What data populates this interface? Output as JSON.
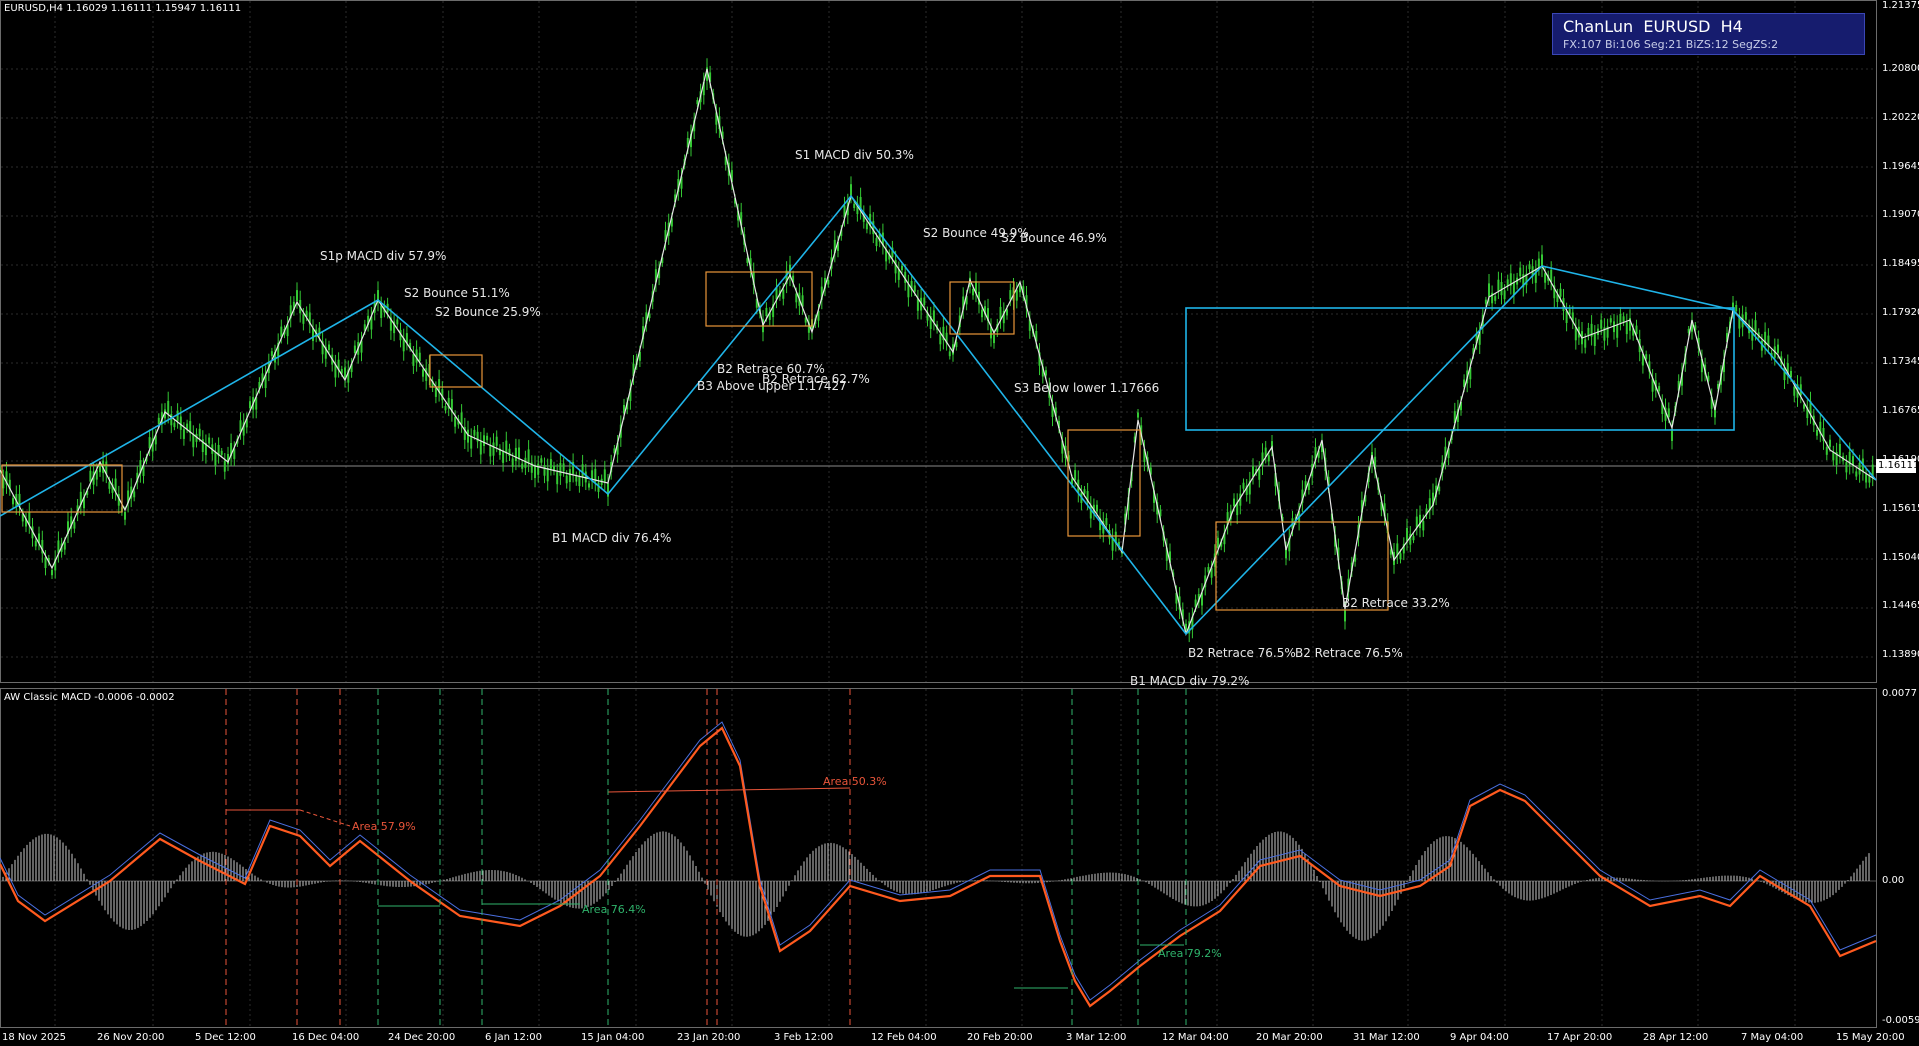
{
  "main_header": "EURUSD,H4  1.16029 1.16111 1.15947 1.16111",
  "macd_header": "AW Classic MACD -0.0006 -0.0002",
  "info_box": {
    "title": "ChanLun  EURUSD  H4",
    "stats": "FX:107  Bi:106  Seg:21  BiZS:12  SegZS:2"
  },
  "price_axis": [
    "1.21375",
    "1.20800",
    "1.20220",
    "1.19645",
    "1.19070",
    "1.18495",
    "1.17920",
    "1.17345",
    "1.16765",
    "1.16190",
    "1.15615",
    "1.15040",
    "1.14465",
    "1.13890"
  ],
  "current_price": "1.16111",
  "macd_axis": [
    "0.0077",
    "0.00",
    "-0.0059"
  ],
  "time_axis": [
    "18 Nov 2025",
    "26 Nov 20:00",
    "5 Dec 12:00",
    "16 Dec 04:00",
    "24 Dec 20:00",
    "6 Jan 12:00",
    "15 Jan 04:00",
    "23 Jan 20:00",
    "3 Feb 12:00",
    "12 Feb 04:00",
    "20 Feb 20:00",
    "3 Mar 12:00",
    "12 Mar 04:00",
    "20 Mar 20:00",
    "31 Mar 12:00",
    "9 Apr 04:00",
    "17 Apr 20:00",
    "28 Apr 12:00",
    "7 May 04:00",
    "15 May 20:00"
  ],
  "annotations": [
    "S1p MACD div 57.9%",
    "S2 Bounce 51.1%",
    "S2 Bounce 25.9%",
    "S1 MACD div 50.3%",
    "S2 Bounce 49.9%",
    "S2 Bounce 46.9%",
    "B2 Retrace 60.7%",
    "B2 Retrace 62.7%",
    "B3 Above upper 1.17427",
    "S3 Below lower 1.17666",
    "B1 MACD div 76.4%",
    "B2 Retrace 33.2%",
    "B2 Retrace 76.5%",
    "B2 Retrace 76.5%",
    "B1 MACD div 79.2%"
  ],
  "macd_areas": [
    {
      "text": "Area 57.9%",
      "color": "#e8553a"
    },
    {
      "text": "Area 50.3%",
      "color": "#e8553a"
    },
    {
      "text": "Area 76.4%",
      "color": "#2fb36b"
    },
    {
      "text": "Area 79.2%",
      "color": "#2fb36b"
    }
  ],
  "colors": {
    "background": "#000000",
    "candle_up": "#34c934",
    "candle_down": "#34c934",
    "segment_line": "#1fb4e8",
    "stroke_line": "#e6e6e6",
    "zone_box": "#e8963a",
    "seg_zone_box": "#1fb4e8",
    "macd_fast": "#ff5a1f",
    "macd_signal": "#4a6fe0",
    "histogram": "#c8c8c8"
  }
}
